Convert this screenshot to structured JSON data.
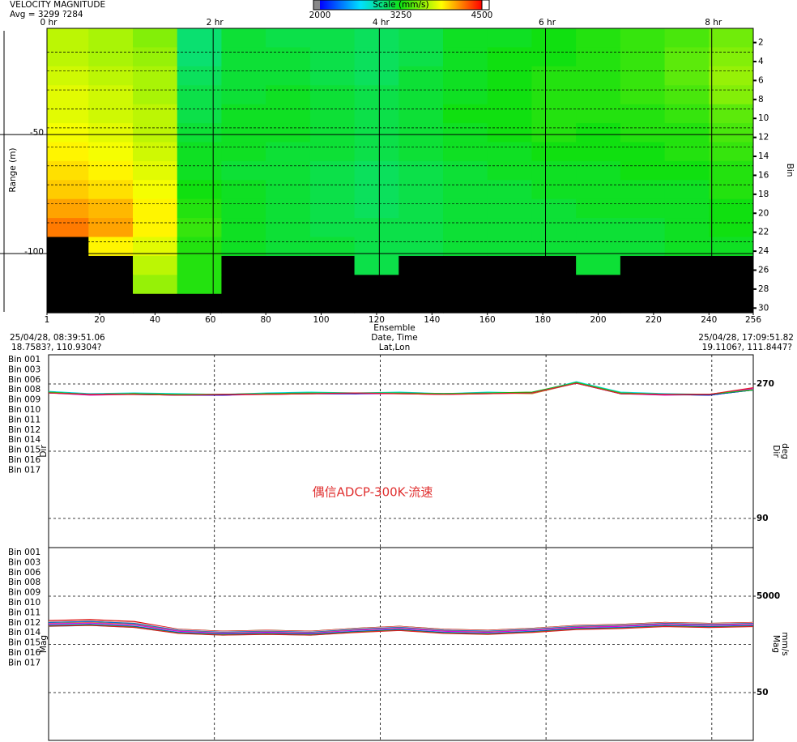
{
  "chart_data": [
    {
      "type": "heatmap",
      "title": "VELOCITY MAGNITUDE",
      "subtitle": "Avg = 3299 ?284",
      "colorbar": {
        "label": "Scale (mm/s)",
        "ticks": [
          2000,
          3250,
          4500
        ],
        "clim": [
          2000,
          4500
        ],
        "colors": [
          "#0000ff",
          "#00e0ff",
          "#10e010",
          "#ffff00",
          "#ff0000"
        ],
        "missing_color": "#000000"
      },
      "xlabel": "Ensemble",
      "xlabel2": "Date, Time",
      "xlabel3": "Lat,Lon",
      "start_time": "25/04/28, 08:39:51.06",
      "start_pos": "18.7583?, 110.9304?",
      "end_time": "25/04/28, 17:09:51.82",
      "end_pos": "19.1106?, 111.8447?",
      "ylabel": "Range (m)",
      "y2label": "Bin",
      "xlim": [
        1,
        256
      ],
      "xticks": [
        1,
        20,
        40,
        60,
        80,
        100,
        120,
        140,
        160,
        180,
        200,
        220,
        240,
        256
      ],
      "top_ticks": [
        {
          "value": 1,
          "label": "0 hr"
        },
        {
          "value": 61,
          "label": "2 hr"
        },
        {
          "value": 121,
          "label": "4 hr"
        },
        {
          "value": 181,
          "label": "6 hr"
        },
        {
          "value": 241,
          "label": "8 hr"
        }
      ],
      "ylim": [
        -124.5,
        -5.4
      ],
      "yticks": [
        -50,
        -100
      ],
      "y2lim": [
        30.4,
        0.5
      ],
      "y2ticks": [
        2,
        4,
        6,
        8,
        10,
        12,
        14,
        16,
        18,
        20,
        22,
        24,
        26,
        28,
        30
      ],
      "x_edges": [
        1,
        16,
        32,
        48,
        64,
        80,
        96,
        112,
        128,
        144,
        160,
        176,
        192,
        208,
        224,
        240,
        256
      ],
      "bin_edges": [
        0.5,
        2.5,
        4.5,
        6.5,
        8.5,
        10.5,
        12.5,
        14.5,
        16.5,
        18.5,
        20.5,
        22.5,
        24.5,
        26.5,
        28.5,
        30.5
      ],
      "values": [
        [
          3700,
          3650,
          3550,
          3000,
          3150,
          3100,
          3100,
          3050,
          3100,
          3200,
          3200,
          3250,
          3300,
          3350,
          3400,
          3500
        ],
        [
          3700,
          3650,
          3600,
          3000,
          3150,
          3150,
          3100,
          3050,
          3100,
          3200,
          3250,
          3250,
          3300,
          3350,
          3450,
          3550
        ],
        [
          3750,
          3700,
          3650,
          3050,
          3150,
          3150,
          3100,
          3050,
          3150,
          3200,
          3250,
          3300,
          3300,
          3350,
          3450,
          3600
        ],
        [
          3800,
          3750,
          3650,
          3100,
          3150,
          3200,
          3150,
          3100,
          3150,
          3200,
          3250,
          3300,
          3300,
          3350,
          3400,
          3550
        ],
        [
          3800,
          3750,
          3700,
          3100,
          3200,
          3200,
          3150,
          3100,
          3150,
          3250,
          3250,
          3300,
          3300,
          3300,
          3350,
          3450
        ],
        [
          3850,
          3800,
          3700,
          3150,
          3200,
          3200,
          3150,
          3100,
          3150,
          3200,
          3250,
          3300,
          3250,
          3300,
          3300,
          3400
        ],
        [
          3900,
          3850,
          3750,
          3200,
          3200,
          3150,
          3150,
          3100,
          3150,
          3200,
          3200,
          3250,
          3250,
          3250,
          3300,
          3350
        ],
        [
          3950,
          3900,
          3800,
          3200,
          3150,
          3150,
          3100,
          3050,
          3100,
          3150,
          3200,
          3200,
          3200,
          3250,
          3250,
          3300
        ],
        [
          4000,
          3950,
          3850,
          3250,
          3200,
          3150,
          3100,
          3050,
          3100,
          3150,
          3150,
          3200,
          3200,
          3200,
          3200,
          3300
        ],
        [
          4100,
          4050,
          3900,
          3300,
          3200,
          3150,
          3100,
          3050,
          3100,
          3150,
          3150,
          3150,
          3200,
          3200,
          3200,
          3250
        ],
        [
          4200,
          4100,
          3900,
          3350,
          3200,
          3150,
          3100,
          3100,
          3100,
          3150,
          3150,
          3150,
          3150,
          3150,
          3200,
          3250
        ],
        [
          null,
          3900,
          3800,
          3300,
          3200,
          3150,
          3150,
          3100,
          3100,
          3150,
          3150,
          3150,
          3150,
          3150,
          3200,
          3200
        ],
        [
          null,
          null,
          3700,
          3300,
          null,
          null,
          null,
          3100,
          null,
          null,
          null,
          null,
          3150,
          null,
          null,
          null
        ],
        [
          null,
          null,
          3600,
          3300,
          null,
          null,
          null,
          null,
          null,
          null,
          null,
          null,
          null,
          null,
          null,
          null
        ],
        [
          null,
          null,
          null,
          null,
          null,
          null,
          null,
          null,
          null,
          null,
          null,
          null,
          null,
          null,
          null,
          null
        ]
      ]
    },
    {
      "type": "line",
      "ylabel": "Dir",
      "y2label": "Dir",
      "y2label2": "deg",
      "annotation": "偶信ADCP-300K-流速",
      "xlim": [
        1,
        256
      ],
      "xgrid": [
        61,
        121,
        181,
        241
      ],
      "ylim": [
        51,
        309
      ],
      "yticks": [
        90,
        270
      ],
      "ygrid": [
        90,
        180,
        270
      ],
      "x": [
        1,
        16,
        32,
        48,
        64,
        80,
        96,
        112,
        128,
        144,
        160,
        176,
        192,
        208,
        224,
        240,
        256
      ],
      "series": [
        {
          "name": "Bin 001",
          "color": "#00e0e0",
          "values": [
            260,
            257,
            258,
            257,
            256,
            258,
            259,
            258,
            259,
            257,
            259,
            258,
            273,
            259,
            257,
            256,
            263
          ]
        },
        {
          "name": "Bin 003",
          "color": "#0000c0",
          "values": [
            259,
            256,
            257,
            256,
            255,
            257,
            258,
            258,
            258,
            257,
            258,
            258,
            272,
            257,
            256,
            255,
            262
          ]
        },
        {
          "name": "Bin 006",
          "color": "#00b000",
          "values": [
            259,
            256,
            257,
            256,
            256,
            257,
            258,
            258,
            258,
            257,
            258,
            259,
            272,
            258,
            256,
            256,
            262
          ]
        },
        {
          "name": "Bin 008",
          "color": "#e00000",
          "values": [
            258,
            256,
            257,
            255,
            256,
            257,
            257,
            258,
            258,
            256,
            258,
            258,
            271,
            258,
            256,
            256,
            264
          ]
        },
        {
          "name": "Bin 009",
          "color": "#f0c0c8",
          "values": [
            258,
            255,
            256,
            255,
            255,
            256,
            257,
            257,
            257,
            256,
            257,
            258,
            271,
            257,
            255,
            255,
            263
          ]
        },
        {
          "name": "Bin 010",
          "color": "#0070d0",
          "values": [
            259,
            256,
            256,
            256,
            255,
            257,
            258,
            257,
            258,
            257,
            258,
            258,
            272,
            257,
            256,
            255,
            262
          ]
        },
        {
          "name": "Bin 011",
          "color": "#d09030",
          "values": [
            258,
            256,
            257,
            255,
            256,
            256,
            257,
            258,
            257,
            256,
            258,
            257,
            271,
            258,
            256,
            256,
            263
          ]
        },
        {
          "name": "Bin 012",
          "color": "#e000e0",
          "values": [
            258,
            255,
            256,
            255,
            255,
            256,
            257,
            257,
            257,
            256,
            257,
            258,
            271,
            257,
            255,
            256,
            264
          ]
        },
        {
          "name": "Bin 014",
          "color": "#20e0e0",
          "values": [
            259,
            256,
            257,
            256,
            256,
            257,
            258,
            258,
            258,
            257,
            258,
            258,
            272,
            258,
            256,
            255,
            262
          ]
        },
        {
          "name": "Bin 015",
          "color": "#0000d0",
          "values": [
            258,
            256,
            256,
            255,
            255,
            257,
            257,
            257,
            258,
            256,
            258,
            258,
            271,
            257,
            256,
            255,
            262
          ]
        },
        {
          "name": "Bin 016",
          "color": "#20c020",
          "values": [
            259,
            256,
            257,
            256,
            256,
            257,
            258,
            258,
            258,
            257,
            258,
            258,
            272,
            258,
            256,
            256,
            262
          ]
        },
        {
          "name": "Bin 017",
          "color": "#e02020",
          "values": [
            258,
            256,
            256,
            255,
            256,
            256,
            257,
            258,
            257,
            256,
            257,
            258,
            271,
            257,
            256,
            256,
            265
          ]
        }
      ]
    },
    {
      "type": "line",
      "ylabel": "Mag",
      "y2label": "Mag",
      "y2label2": "mm/s",
      "xlim": [
        1,
        256
      ],
      "xgrid": [
        61,
        121,
        181,
        241
      ],
      "ylim": [
        -2404,
        7496
      ],
      "yticks": [
        50,
        5000
      ],
      "ygrid": [
        50,
        2525,
        5000
      ],
      "x": [
        1,
        16,
        32,
        48,
        64,
        80,
        96,
        112,
        128,
        144,
        160,
        176,
        192,
        208,
        224,
        240,
        256
      ],
      "series": [
        {
          "name": "Bin 001",
          "color": "#00e0e0",
          "values": [
            3450,
            3500,
            3400,
            3100,
            3000,
            3050,
            3000,
            3150,
            3250,
            3100,
            3050,
            3150,
            3300,
            3350,
            3450,
            3400,
            3450
          ]
        },
        {
          "name": "Bin 003",
          "color": "#0000c0",
          "values": [
            3650,
            3700,
            3600,
            3250,
            3150,
            3200,
            3150,
            3300,
            3400,
            3250,
            3200,
            3300,
            3450,
            3500,
            3600,
            3550,
            3600
          ]
        },
        {
          "name": "Bin 006",
          "color": "#00b000",
          "values": [
            3700,
            3750,
            3650,
            3300,
            3200,
            3250,
            3200,
            3350,
            3450,
            3300,
            3250,
            3350,
            3500,
            3550,
            3650,
            3600,
            3650
          ]
        },
        {
          "name": "Bin 008",
          "color": "#e00000",
          "values": [
            3750,
            3800,
            3700,
            3300,
            3200,
            3250,
            3200,
            3350,
            3450,
            3300,
            3250,
            3350,
            3500,
            3550,
            3650,
            3600,
            3650
          ]
        },
        {
          "name": "Bin 009",
          "color": "#f0c0c8",
          "values": [
            3700,
            3750,
            3650,
            3280,
            3180,
            3230,
            3180,
            3330,
            3430,
            3280,
            3230,
            3330,
            3480,
            3530,
            3630,
            3580,
            3630
          ]
        },
        {
          "name": "Bin 010",
          "color": "#0070d0",
          "values": [
            3650,
            3700,
            3600,
            3250,
            3150,
            3200,
            3150,
            3300,
            3400,
            3250,
            3200,
            3300,
            3450,
            3500,
            3600,
            3550,
            3600
          ]
        },
        {
          "name": "Bin 011",
          "color": "#d09030",
          "values": [
            3600,
            3650,
            3550,
            3220,
            3120,
            3170,
            3120,
            3270,
            3370,
            3220,
            3170,
            3270,
            3420,
            3470,
            3570,
            3520,
            3570
          ]
        },
        {
          "name": "Bin 012",
          "color": "#e000e0",
          "values": [
            3580,
            3620,
            3520,
            3200,
            3100,
            3150,
            3100,
            3250,
            3350,
            3200,
            3150,
            3250,
            3400,
            3450,
            3550,
            3500,
            3550
          ]
        },
        {
          "name": "Bin 014",
          "color": "#20e0e0",
          "values": [
            3520,
            3560,
            3460,
            3150,
            3060,
            3100,
            3060,
            3200,
            3300,
            3150,
            3100,
            3200,
            3350,
            3400,
            3500,
            3450,
            3500
          ]
        },
        {
          "name": "Bin 015",
          "color": "#0000d0",
          "values": [
            3500,
            3540,
            3440,
            3130,
            3040,
            3080,
            3040,
            3180,
            3280,
            3130,
            3080,
            3180,
            3330,
            3380,
            3480,
            3430,
            3480
          ]
        },
        {
          "name": "Bin 016",
          "color": "#20c020",
          "values": [
            3480,
            3520,
            3420,
            3110,
            3020,
            3060,
            3020,
            3160,
            3260,
            3110,
            3060,
            3160,
            3310,
            3360,
            3460,
            3410,
            3460
          ]
        },
        {
          "name": "Bin 017",
          "color": "#e02020",
          "values": [
            3460,
            3500,
            3400,
            3090,
            3000,
            3040,
            3000,
            3140,
            3240,
            3090,
            3040,
            3140,
            3290,
            3340,
            3440,
            3390,
            3440
          ]
        }
      ]
    }
  ]
}
